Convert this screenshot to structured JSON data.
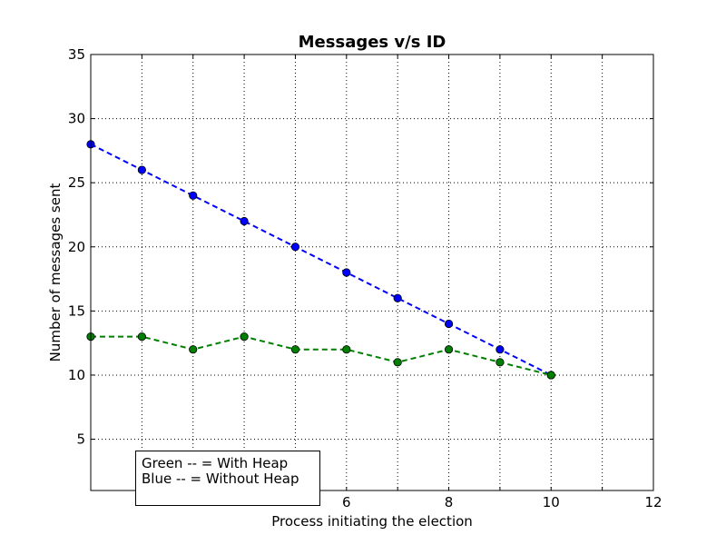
{
  "chart_data": {
    "type": "line",
    "title": "Messages v/s ID",
    "xlabel": "Process initiating the election",
    "ylabel": "Number of messages sent",
    "xlim": [
      1,
      12
    ],
    "ylim": [
      1,
      35
    ],
    "xticks": [
      6,
      8,
      10,
      12
    ],
    "yticks": [
      5,
      10,
      15,
      20,
      25,
      30,
      35
    ],
    "grid": true,
    "x": [
      1,
      2,
      3,
      4,
      5,
      6,
      7,
      8,
      9,
      10
    ],
    "series": [
      {
        "color": "#0000ff",
        "style": "dashed",
        "marker": "circle",
        "values": [
          28,
          26,
          24,
          22,
          20,
          18,
          16,
          14,
          12,
          10
        ]
      },
      {
        "color": "#008000",
        "style": "dashed",
        "marker": "circle",
        "values": [
          13,
          13,
          12,
          13,
          12,
          12,
          11,
          12,
          11,
          10
        ]
      }
    ],
    "legend": {
      "position": "bottom-left",
      "lines": [
        "Green -- = With Heap",
        "Blue -- = Without Heap"
      ]
    }
  }
}
